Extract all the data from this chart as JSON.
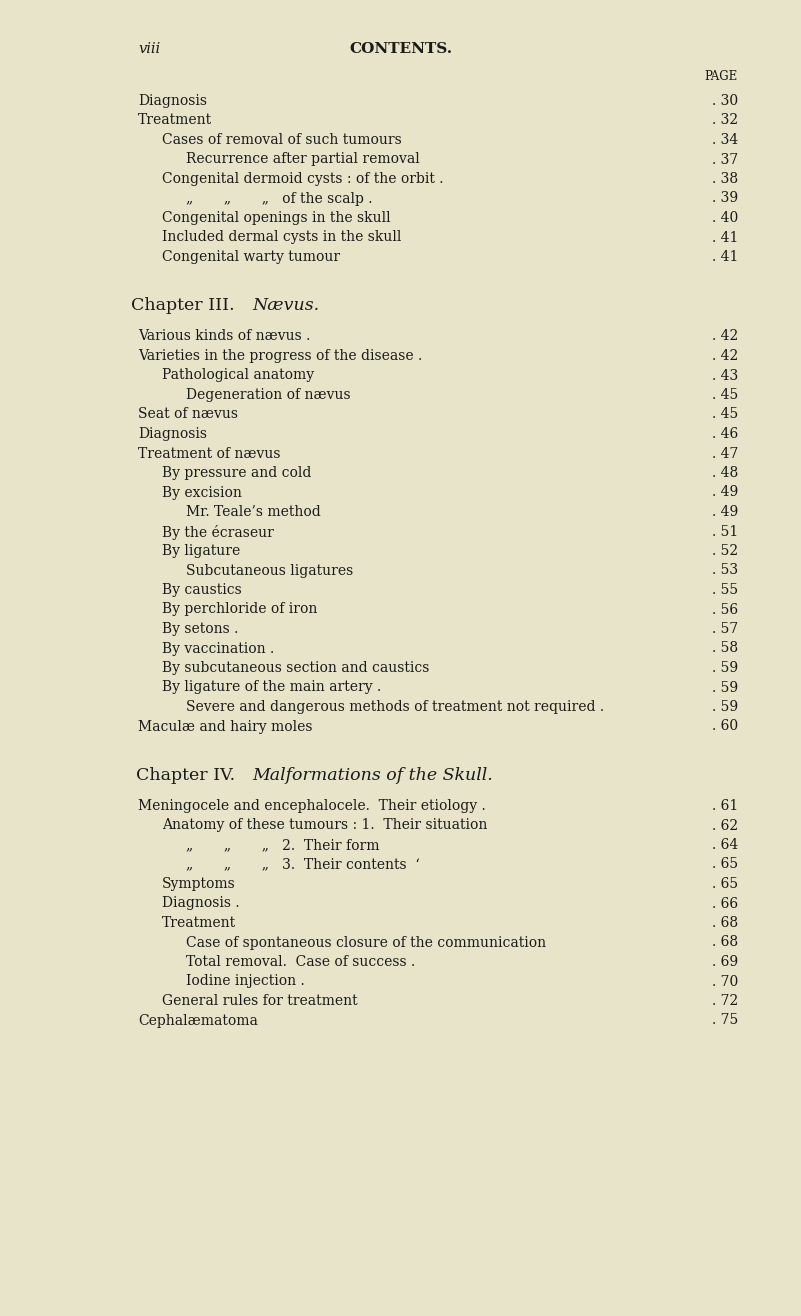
{
  "bg_color": "#e8e4c9",
  "text_color": "#1a1a1a",
  "page_width": 8.01,
  "page_height": 13.16,
  "header_left": "viii",
  "header_center": "CONTENTS.",
  "page_label": "PAGE",
  "entries": [
    {
      "indent": 0,
      "text": "Diagnosis",
      "page": "30"
    },
    {
      "indent": 0,
      "text": "Treatment",
      "page": "32"
    },
    {
      "indent": 1,
      "text": "Cases of removal of such tumours",
      "page": "34"
    },
    {
      "indent": 2,
      "text": "Recurrence after partial removal",
      "page": "37"
    },
    {
      "indent": 1,
      "text": "Congenital dermoid cysts : of the orbit .",
      "page": "38"
    },
    {
      "indent": 2,
      "text": "„       „       „   of the scalp .",
      "page": "39"
    },
    {
      "indent": 1,
      "text": "Congenital openings in the skull",
      "page": "40"
    },
    {
      "indent": 1,
      "text": "Included dermal cysts in the skull",
      "page": "41"
    },
    {
      "indent": 1,
      "text": "Congenital warty tumour",
      "page": "41"
    },
    {
      "indent": -1,
      "text": "CHAPTER_III",
      "page": ""
    },
    {
      "indent": 0,
      "text": "Various kinds of nævus .",
      "page": "42"
    },
    {
      "indent": 0,
      "text": "Varieties in the progress of the disease .",
      "page": "42"
    },
    {
      "indent": 1,
      "text": "Pathological anatomy",
      "page": "43"
    },
    {
      "indent": 2,
      "text": "Degeneration of nævus",
      "page": "45"
    },
    {
      "indent": 0,
      "text": "Seat of nævus",
      "page": "45"
    },
    {
      "indent": 0,
      "text": "Diagnosis",
      "page": "46"
    },
    {
      "indent": 0,
      "text": "Treatment of nævus",
      "page": "47"
    },
    {
      "indent": 1,
      "text": "By pressure and cold",
      "page": "48"
    },
    {
      "indent": 1,
      "text": "By excision",
      "page": "49"
    },
    {
      "indent": 2,
      "text": "Mr. Teale’s method",
      "page": "49"
    },
    {
      "indent": 1,
      "text": "By the écraseur",
      "page": "51"
    },
    {
      "indent": 1,
      "text": "By ligature",
      "page": "52"
    },
    {
      "indent": 2,
      "text": "Subcutaneous ligatures",
      "page": "53"
    },
    {
      "indent": 1,
      "text": "By caustics",
      "page": "55"
    },
    {
      "indent": 1,
      "text": "By perchloride of iron",
      "page": "56"
    },
    {
      "indent": 1,
      "text": "By setons .",
      "page": "57"
    },
    {
      "indent": 1,
      "text": "By vaccination .",
      "page": "58"
    },
    {
      "indent": 1,
      "text": "By subcutaneous section and caustics",
      "page": "59"
    },
    {
      "indent": 1,
      "text": "By ligature of the main artery .",
      "page": "59"
    },
    {
      "indent": 2,
      "text": "Severe and dangerous methods of treatment not required .",
      "page": "59"
    },
    {
      "indent": 0,
      "text": "Maculæ and hairy moles",
      "page": "60"
    },
    {
      "indent": -1,
      "text": "CHAPTER_IV",
      "page": ""
    },
    {
      "indent": 0,
      "text": "Meningocele and encephalocele.  Their etiology .",
      "page": "61"
    },
    {
      "indent": 1,
      "text": "Anatomy of these tumours : 1.  Their situation",
      "page": "62"
    },
    {
      "indent": 2,
      "text": "„       „       „   2.  Their form",
      "page": "64"
    },
    {
      "indent": 2,
      "text": "„       „       „   3.  Their contents  ‘",
      "page": "65"
    },
    {
      "indent": 1,
      "text": "Symptoms",
      "page": "65"
    },
    {
      "indent": 1,
      "text": "Diagnosis .",
      "page": "66"
    },
    {
      "indent": 1,
      "text": "Treatment",
      "page": "68"
    },
    {
      "indent": 2,
      "text": "Case of spontaneous closure of the communication",
      "page": "68"
    },
    {
      "indent": 2,
      "text": "Total removal.  Case of success .",
      "page": "69"
    },
    {
      "indent": 2,
      "text": "Iodine injection .",
      "page": "70"
    },
    {
      "indent": 1,
      "text": "General rules for treatment",
      "page": "72"
    },
    {
      "indent": 0,
      "text": "Cephalæmatoma",
      "page": "75"
    }
  ]
}
